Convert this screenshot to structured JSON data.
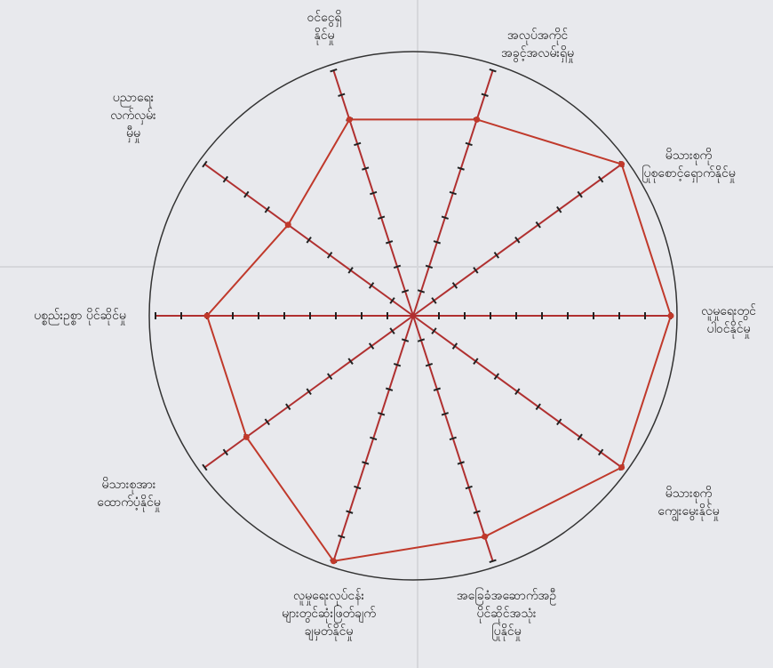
{
  "chart_data": {
    "type": "radar",
    "categories": [
      [
        "ဝင်ငွေရှိ",
        "နိုင်မှု"
      ],
      [
        "အလုပ်အကိုင်",
        "အခွင့်အလမ်းရှိမှု"
      ],
      [
        "မိသားစုကို",
        "ပြုစုစောင့်ရှောက်နိုင်မှု"
      ],
      [
        "လူမှုရေးတွင်",
        "ပါဝင်နိုင်မှု"
      ],
      [
        "မိသားစုကို",
        "ကျွေးမွေးနိုင်မှု"
      ],
      [
        "အခြေခံအဆောက်အဦ",
        "ပိုင်ဆိုင်အသုံး",
        "ပြုနိုင်မှု"
      ],
      [
        "လူမှုရေးလုပ်ငန်း",
        "များတွင်ဆုံးဖြတ်ချက်",
        "ချမှတ်နိုင်မှု"
      ],
      [
        "မိသားစုအား",
        "ထောက်ပံ့နိုင်မှု"
      ],
      [
        "ပစ္စည်းဥစ္စာ ပိုင်ဆိုင်မှု"
      ],
      [
        "ပညာရေး",
        "လက်လှမ်း",
        "မှီမှု"
      ]
    ],
    "values": [
      8,
      8,
      10,
      10,
      10,
      9,
      10,
      8,
      8,
      6
    ],
    "color": "#c0392b",
    "axis_color": "#b03030",
    "rlim": [
      0,
      10
    ],
    "rticks": [
      1,
      2,
      3,
      4,
      5,
      6,
      7,
      8,
      9,
      10
    ]
  }
}
